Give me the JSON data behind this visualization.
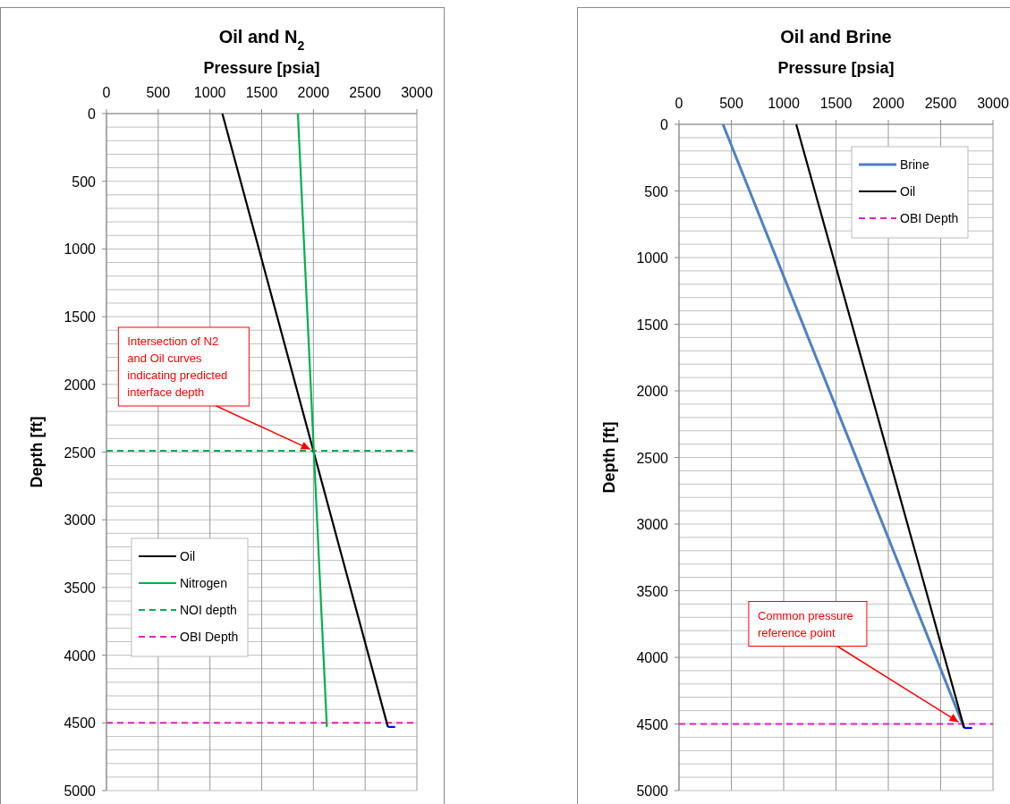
{
  "chart_data": [
    {
      "type": "line",
      "title": "Oil and N$_{2}$",
      "xlabel": "Pressure [psia]",
      "ylabel": "Depth [ft]",
      "xlim": [
        0,
        3000
      ],
      "xticks": [
        0,
        500,
        1000,
        1500,
        2000,
        2500,
        3000
      ],
      "ylim": [
        5000,
        0
      ],
      "yticks": [
        0,
        {
          "value": 100,
          "label": null
        },
        {
          "value": 200,
          "label": null
        },
        {
          "value": 300,
          "label": null
        },
        {
          "value": 400,
          "label": null
        },
        500,
        {
          "value": 600,
          "label": null
        },
        {
          "value": 700,
          "label": null
        },
        {
          "value": 800,
          "label": null
        },
        {
          "value": 900,
          "label": null
        },
        1000,
        {
          "value": 1100,
          "label": null
        },
        {
          "value": 1200,
          "label": null
        },
        {
          "value": 1300,
          "label": null
        },
        {
          "value": 1400,
          "label": null
        },
        1500,
        {
          "value": 1600,
          "label": null
        },
        {
          "value": 1700,
          "label": null
        },
        {
          "value": 1800,
          "label": null
        },
        {
          "value": 1900,
          "label": null
        },
        2000,
        {
          "value": 2100,
          "label": null
        },
        {
          "value": 2200,
          "label": null
        },
        {
          "value": 2300,
          "label": null
        },
        {
          "value": 2400,
          "label": null
        },
        2500,
        {
          "value": 2600,
          "label": null
        },
        {
          "value": 2700,
          "label": null
        },
        {
          "value": 2800,
          "label": null
        },
        {
          "value": 2900,
          "label": null
        },
        3000,
        {
          "value": 3100,
          "label": null
        },
        {
          "value": 3200,
          "label": null
        },
        {
          "value": 3300,
          "label": null
        },
        {
          "value": 3400,
          "label": null
        },
        3500,
        {
          "value": 3600,
          "label": null
        },
        {
          "value": 3700,
          "label": null
        },
        {
          "value": 3800,
          "label": null
        },
        {
          "value": 3900,
          "label": null
        },
        4000,
        {
          "value": 4100,
          "label": null
        },
        {
          "value": 4200,
          "label": null
        },
        {
          "value": 4300,
          "label": null
        },
        {
          "value": 4400,
          "label": null
        },
        4500,
        {
          "value": 4600,
          "label": null
        },
        {
          "value": 4700,
          "label": null
        },
        {
          "value": 4800,
          "label": null
        },
        {
          "value": 4900,
          "label": null
        },
        5000
      ],
      "grid": true,
      "legend": "bottom left",
      "line_style": "solid",
      "marker": "none",
      "series": [
        {
          "name": "Oil",
          "color": "#000000",
          "x": [
            1120,
            2720
          ],
          "values": [
            0,
            4530
          ]
        },
        {
          "name": "Nitrogen",
          "color": "#00b050",
          "x": [
            1850,
            2130
          ],
          "values": [
            0,
            4530
          ]
        },
        {
          "color": "#0000ff",
          "x": [
            2720,
            2790
          ],
          "values": [
            4530,
            4530
          ]
        }
      ],
      "ref_lines": [
        {
          "axis": "y",
          "value": 2490,
          "label": "NOI depth",
          "color": "#00b050",
          "line_style": "dashed"
        },
        {
          "axis": "y",
          "value": 4500,
          "label": "OBI Depth",
          "color": "#e020c0",
          "line_style": "dashed"
        }
      ],
      "annotations": [
        {
          "text": "Intersection of N2 and Oil curves indicating predicted interface depth",
          "x": 2000,
          "y": 2490
        }
      ]
    },
    {
      "type": "line",
      "title": "Oil and Brine",
      "xlabel": "Pressure [psia]",
      "ylabel": "Depth [ft]",
      "xlim": [
        0,
        3000
      ],
      "xticks": [
        0,
        500,
        1000,
        1500,
        2000,
        2500,
        3000
      ],
      "ylim": [
        5000,
        0
      ],
      "yticks": [
        0,
        {
          "value": 100,
          "label": null
        },
        {
          "value": 200,
          "label": null
        },
        {
          "value": 300,
          "label": null
        },
        {
          "value": 400,
          "label": null
        },
        500,
        {
          "value": 600,
          "label": null
        },
        {
          "value": 700,
          "label": null
        },
        {
          "value": 800,
          "label": null
        },
        {
          "value": 900,
          "label": null
        },
        1000,
        {
          "value": 1100,
          "label": null
        },
        {
          "value": 1200,
          "label": null
        },
        {
          "value": 1300,
          "label": null
        },
        {
          "value": 1400,
          "label": null
        },
        1500,
        {
          "value": 1600,
          "label": null
        },
        {
          "value": 1700,
          "label": null
        },
        {
          "value": 1800,
          "label": null
        },
        {
          "value": 1900,
          "label": null
        },
        2000,
        {
          "value": 2100,
          "label": null
        },
        {
          "value": 2200,
          "label": null
        },
        {
          "value": 2300,
          "label": null
        },
        {
          "value": 2400,
          "label": null
        },
        2500,
        {
          "value": 2600,
          "label": null
        },
        {
          "value": 2700,
          "label": null
        },
        {
          "value": 2800,
          "label": null
        },
        {
          "value": 2900,
          "label": null
        },
        3000,
        {
          "value": 3100,
          "label": null
        },
        {
          "value": 3200,
          "label": null
        },
        {
          "value": 3300,
          "label": null
        },
        {
          "value": 3400,
          "label": null
        },
        3500,
        {
          "value": 3600,
          "label": null
        },
        {
          "value": 3700,
          "label": null
        },
        {
          "value": 3800,
          "label": null
        },
        {
          "value": 3900,
          "label": null
        },
        4000,
        {
          "value": 4100,
          "label": null
        },
        {
          "value": 4200,
          "label": null
        },
        {
          "value": 4300,
          "label": null
        },
        {
          "value": 4400,
          "label": null
        },
        4500,
        {
          "value": 4600,
          "label": null
        },
        {
          "value": 4700,
          "label": null
        },
        {
          "value": 4800,
          "label": null
        },
        {
          "value": 4900,
          "label": null
        },
        5000
      ],
      "grid": true,
      "legend": "top right",
      "line_style": "solid",
      "marker": "none",
      "series": [
        {
          "name": "Brine",
          "color": "#4f81bd",
          "x": [
            420,
            2725
          ],
          "values": [
            0,
            4530
          ]
        },
        {
          "name": "Oil",
          "color": "#000000",
          "x": [
            1120,
            2725
          ],
          "values": [
            0,
            4530
          ]
        },
        {
          "color": "#0000ff",
          "x": [
            2725,
            2800
          ],
          "values": [
            4530,
            4530
          ]
        }
      ],
      "ref_lines": [
        {
          "axis": "y",
          "value": 4500,
          "label": "OBI Depth",
          "color": "#e020c0",
          "line_style": "dashed"
        }
      ],
      "annotations": [
        {
          "text": "Common pressure reference point",
          "x": 2700,
          "y": 4500
        }
      ]
    }
  ]
}
